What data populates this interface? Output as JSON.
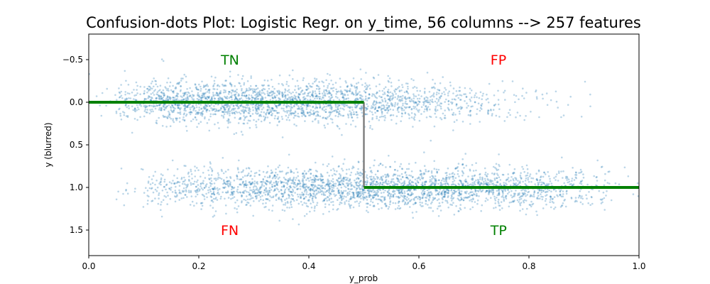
{
  "chart_data": {
    "type": "scatter",
    "title": "Confusion-dots Plot: Logistic Regr. on y_time, 56 columns --> 257 features",
    "xlabel": "y_prob",
    "ylabel": "y (blurred)",
    "xlim": [
      0.0,
      1.0
    ],
    "ylim": [
      1.8,
      -0.8
    ],
    "y_inverted": true,
    "x_ticks": [
      "0.0",
      "0.2",
      "0.4",
      "0.6",
      "0.8",
      "1.0"
    ],
    "y_ticks": [
      "−0.5",
      "0.0",
      "0.5",
      "1.0",
      "1.5"
    ],
    "grid": false,
    "point_color": "#1f77b4",
    "threshold": 0.5,
    "threshold_line": {
      "points": [
        [
          0.0,
          0.0
        ],
        [
          0.5,
          0.0
        ],
        [
          0.5,
          1.0
        ],
        [
          1.0,
          1.0
        ]
      ],
      "horizontal_color": "#008000",
      "vertical_color": "#808080"
    },
    "series": [
      {
        "label_y": 0,
        "y_center": 0.0,
        "y_spread": 0.12,
        "x_density": [
          [
            0.0,
            0.04
          ],
          [
            0.05,
            0.35
          ],
          [
            0.1,
            0.85
          ],
          [
            0.15,
            0.95
          ],
          [
            0.2,
            1.0
          ],
          [
            0.25,
            1.0
          ],
          [
            0.3,
            0.98
          ],
          [
            0.35,
            0.95
          ],
          [
            0.4,
            0.9
          ],
          [
            0.45,
            0.82
          ],
          [
            0.5,
            0.72
          ],
          [
            0.55,
            0.6
          ],
          [
            0.6,
            0.45
          ],
          [
            0.65,
            0.32
          ],
          [
            0.7,
            0.2
          ],
          [
            0.75,
            0.1
          ],
          [
            0.8,
            0.05
          ],
          [
            0.85,
            0.03
          ],
          [
            0.9,
            0.015
          ],
          [
            0.95,
            0.0
          ]
        ]
      },
      {
        "label_y": 1,
        "y_center": 1.0,
        "y_spread": 0.12,
        "x_density": [
          [
            0.0,
            0.0
          ],
          [
            0.05,
            0.06
          ],
          [
            0.1,
            0.28
          ],
          [
            0.15,
            0.42
          ],
          [
            0.2,
            0.52
          ],
          [
            0.25,
            0.62
          ],
          [
            0.3,
            0.72
          ],
          [
            0.35,
            0.82
          ],
          [
            0.4,
            0.9
          ],
          [
            0.45,
            0.96
          ],
          [
            0.5,
            1.0
          ],
          [
            0.55,
            0.98
          ],
          [
            0.6,
            0.92
          ],
          [
            0.65,
            0.86
          ],
          [
            0.7,
            0.78
          ],
          [
            0.75,
            0.68
          ],
          [
            0.8,
            0.55
          ],
          [
            0.85,
            0.4
          ],
          [
            0.9,
            0.2
          ],
          [
            0.95,
            0.03
          ]
        ]
      }
    ],
    "annotations": [
      {
        "text": "TN",
        "x": 0.24,
        "y": -0.5,
        "color": "#008000"
      },
      {
        "text": "FP",
        "x": 0.73,
        "y": -0.5,
        "color": "#ff0000"
      },
      {
        "text": "FN",
        "x": 0.24,
        "y": 1.5,
        "color": "#ff0000"
      },
      {
        "text": "TP",
        "x": 0.73,
        "y": 1.5,
        "color": "#008000"
      }
    ]
  }
}
